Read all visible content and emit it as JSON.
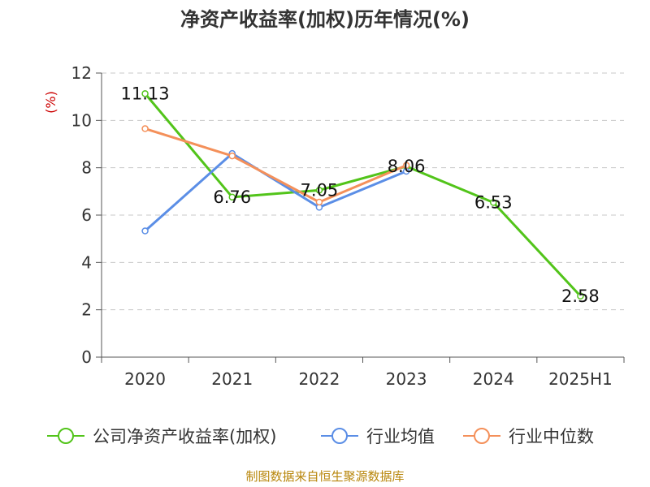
{
  "chart_data": {
    "type": "line",
    "title": "净资产收益率(加权)历年情况(%)",
    "unit_label": "(%)",
    "categories": [
      "2020",
      "2021",
      "2022",
      "2023",
      "2024",
      "2025H1"
    ],
    "ylim": [
      0,
      12
    ],
    "yticks": [
      0,
      2,
      4,
      6,
      8,
      10,
      12
    ],
    "grid": true,
    "legend_position": "bottom",
    "series": [
      {
        "name": "公司净资产收益率(加权)",
        "color": "#52c41a",
        "values": [
          11.13,
          6.76,
          7.05,
          8.06,
          6.53,
          2.58
        ],
        "labels": [
          "11.13",
          "6.76",
          "7.05",
          "8.06",
          "6.53",
          "2.58"
        ]
      },
      {
        "name": "行业均值",
        "color": "#5b8ee6",
        "values": [
          5.33,
          8.6,
          6.33,
          7.85,
          null,
          null
        ]
      },
      {
        "name": "行业中位数",
        "color": "#f4905a",
        "values": [
          9.65,
          8.5,
          6.55,
          8.1,
          null,
          null
        ]
      }
    ]
  },
  "footer": {
    "source": "制图数据来自恒生聚源数据库"
  }
}
